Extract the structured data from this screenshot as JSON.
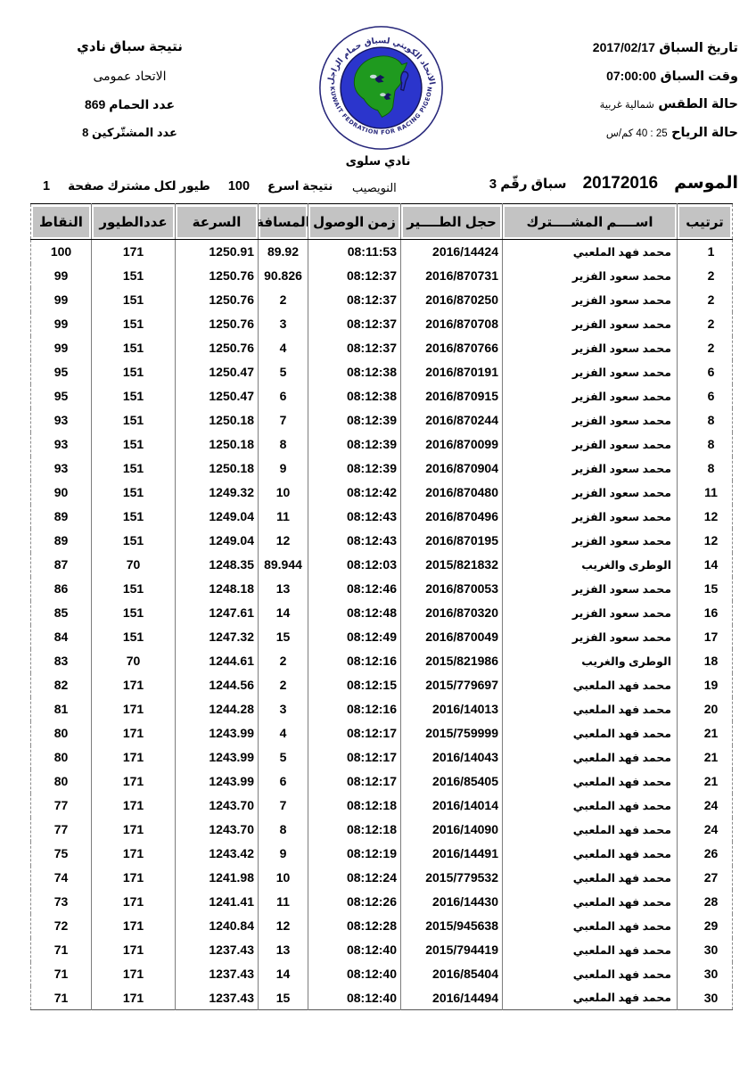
{
  "info_block": {
    "race_date_label": "تاريخ السباق",
    "race_date_value": "2017/02/17",
    "race_time_label": "وقت السباق",
    "race_time_value": "07:00:00",
    "weather_label": "حالة الطقس",
    "weather_value": "شمالية غربية",
    "wind_label": "حالة الرياح",
    "wind_value": "25 : 40 كم/س"
  },
  "result_block": {
    "line1": "نتيجة سباق نادي",
    "line2": "الاتحاد عمومى",
    "pigeons_label": "عدد الحمام",
    "pigeons_value": "869",
    "participants_label": "عدد المشتّركين",
    "participants_value": "8"
  },
  "logo": {
    "arabic_text": "الاتحاد الكويتي لسباق حمام الزاجل",
    "english_text": "KUWAIT FEDRATION FOR RACING PIGEON",
    "ring_color": "#26267a",
    "inner_color": "#2b35cc",
    "map_color": "#1f9a1f"
  },
  "club_name": "نادي سلوى",
  "title_row": {
    "season_label": "الموسم",
    "season_value": "20172016",
    "race_no": "سباق رقّم 3",
    "location": "النويصيب",
    "fastest_label": "نتيجة اسرع",
    "fastest_count": "100",
    "fastest_suffix": "طيور لكل مشترك صفحة",
    "page_value": "1"
  },
  "table": {
    "headers": [
      "ترتيب",
      "اســــم المشــــترك",
      "حجل الطــــير",
      "زمن الوصول",
      "المسافة",
      "السرعة",
      "عددالطيور",
      "النقاط"
    ],
    "column_keys": [
      "rank",
      "participant-name",
      "ring-number",
      "arrival-time",
      "distance",
      "speed",
      "bird-count",
      "points"
    ],
    "rows": [
      [
        "1",
        "محمد فهد الملعبي",
        "2016/14424",
        "08:11:53",
        "89.92",
        "1250.91",
        "171",
        "100"
      ],
      [
        "2",
        "محمد سعود الفزير",
        "2016/870731",
        "08:12:37",
        "90.826",
        "1250.76",
        "151",
        "99"
      ],
      [
        "2",
        "محمد سعود الفزير",
        "2016/870250",
        "08:12:37",
        "2",
        "1250.76",
        "151",
        "99"
      ],
      [
        "2",
        "محمد سعود الفزير",
        "2016/870708",
        "08:12:37",
        "3",
        "1250.76",
        "151",
        "99"
      ],
      [
        "2",
        "محمد سعود الفزير",
        "2016/870766",
        "08:12:37",
        "4",
        "1250.76",
        "151",
        "99"
      ],
      [
        "6",
        "محمد سعود الفزير",
        "2016/870191",
        "08:12:38",
        "5",
        "1250.47",
        "151",
        "95"
      ],
      [
        "6",
        "محمد سعود الفزير",
        "2016/870915",
        "08:12:38",
        "6",
        "1250.47",
        "151",
        "95"
      ],
      [
        "8",
        "محمد سعود الفزير",
        "2016/870244",
        "08:12:39",
        "7",
        "1250.18",
        "151",
        "93"
      ],
      [
        "8",
        "محمد سعود الفزير",
        "2016/870099",
        "08:12:39",
        "8",
        "1250.18",
        "151",
        "93"
      ],
      [
        "8",
        "محمد سعود الفزير",
        "2016/870904",
        "08:12:39",
        "9",
        "1250.18",
        "151",
        "93"
      ],
      [
        "11",
        "محمد سعود الفزير",
        "2016/870480",
        "08:12:42",
        "10",
        "1249.32",
        "151",
        "90"
      ],
      [
        "12",
        "محمد سعود الفزير",
        "2016/870496",
        "08:12:43",
        "11",
        "1249.04",
        "151",
        "89"
      ],
      [
        "12",
        "محمد سعود الفزير",
        "2016/870195",
        "08:12:43",
        "12",
        "1249.04",
        "151",
        "89"
      ],
      [
        "14",
        "الوطرى والغريب",
        "2015/821832",
        "08:12:03",
        "89.944",
        "1248.35",
        "70",
        "87"
      ],
      [
        "15",
        "محمد سعود الفزير",
        "2016/870053",
        "08:12:46",
        "13",
        "1248.18",
        "151",
        "86"
      ],
      [
        "16",
        "محمد سعود الفزير",
        "2016/870320",
        "08:12:48",
        "14",
        "1247.61",
        "151",
        "85"
      ],
      [
        "17",
        "محمد سعود الفزير",
        "2016/870049",
        "08:12:49",
        "15",
        "1247.32",
        "151",
        "84"
      ],
      [
        "18",
        "الوطرى والغريب",
        "2015/821986",
        "08:12:16",
        "2",
        "1244.61",
        "70",
        "83"
      ],
      [
        "19",
        "محمد فهد الملعبي",
        "2015/779697",
        "08:12:15",
        "2",
        "1244.56",
        "171",
        "82"
      ],
      [
        "20",
        "محمد فهد الملعبي",
        "2016/14013",
        "08:12:16",
        "3",
        "1244.28",
        "171",
        "81"
      ],
      [
        "21",
        "محمد فهد الملعبي",
        "2015/759999",
        "08:12:17",
        "4",
        "1243.99",
        "171",
        "80"
      ],
      [
        "21",
        "محمد فهد الملعبي",
        "2016/14043",
        "08:12:17",
        "5",
        "1243.99",
        "171",
        "80"
      ],
      [
        "21",
        "محمد فهد الملعبي",
        "2016/85405",
        "08:12:17",
        "6",
        "1243.99",
        "171",
        "80"
      ],
      [
        "24",
        "محمد فهد الملعبي",
        "2016/14014",
        "08:12:18",
        "7",
        "1243.70",
        "171",
        "77"
      ],
      [
        "24",
        "محمد فهد الملعبي",
        "2016/14090",
        "08:12:18",
        "8",
        "1243.70",
        "171",
        "77"
      ],
      [
        "26",
        "محمد فهد الملعبي",
        "2016/14491",
        "08:12:19",
        "9",
        "1243.42",
        "171",
        "75"
      ],
      [
        "27",
        "محمد فهد الملعبي",
        "2015/779532",
        "08:12:24",
        "10",
        "1241.98",
        "171",
        "74"
      ],
      [
        "28",
        "محمد فهد الملعبي",
        "2016/14430",
        "08:12:26",
        "11",
        "1241.41",
        "171",
        "73"
      ],
      [
        "29",
        "محمد فهد الملعبي",
        "2015/945638",
        "08:12:28",
        "12",
        "1240.84",
        "171",
        "72"
      ],
      [
        "30",
        "محمد فهد الملعبي",
        "2015/794419",
        "08:12:40",
        "13",
        "1237.43",
        "171",
        "71"
      ],
      [
        "30",
        "محمد فهد الملعبي",
        "2016/85404",
        "08:12:40",
        "14",
        "1237.43",
        "171",
        "71"
      ],
      [
        "30",
        "محمد فهد الملعبي",
        "2016/14494",
        "08:12:40",
        "15",
        "1237.43",
        "171",
        "71"
      ]
    ]
  }
}
